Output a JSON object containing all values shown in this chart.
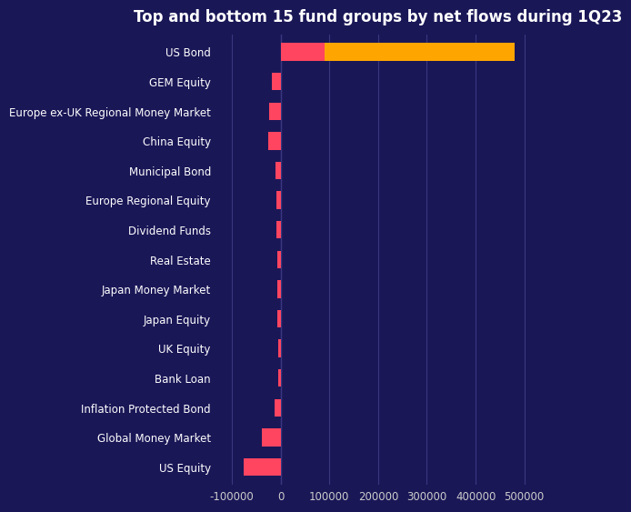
{
  "title": "Top and bottom 15 fund groups by net flows during 1Q23",
  "background_color": "#1a1757",
  "categories": [
    "US Bond",
    "GEM Equity",
    "Europe ex-UK Regional Money Market",
    "China Equity",
    "Municipal Bond",
    "Europe Regional Equity",
    "Dividend Funds",
    "Real Estate",
    "Japan Money Market",
    "Japan Equity",
    "UK Equity",
    "Bank Loan",
    "Inflation Protected Bond",
    "Global Money Market",
    "US Equity"
  ],
  "values_orange": [
    480000,
    0,
    0,
    0,
    0,
    0,
    0,
    0,
    0,
    0,
    0,
    0,
    0,
    0,
    0
  ],
  "values_red": [
    90000,
    -18000,
    -23000,
    -26000,
    -11000,
    -9000,
    -8000,
    -7000,
    -6500,
    -6000,
    -5500,
    -5000,
    -12000,
    -38000,
    -75000
  ],
  "bar_color_orange": "#FFA500",
  "bar_color_red": "#FF4560",
  "text_color": "#ffffff",
  "grid_color": "#3a3780",
  "tick_color": "#cccccc",
  "xlim": [
    -130000,
    530000
  ],
  "xticks": [
    -100000,
    0,
    100000,
    200000,
    300000,
    400000,
    500000
  ],
  "title_fontsize": 12,
  "label_fontsize": 8.5,
  "tick_fontsize": 8.5,
  "bar_height": 0.6
}
